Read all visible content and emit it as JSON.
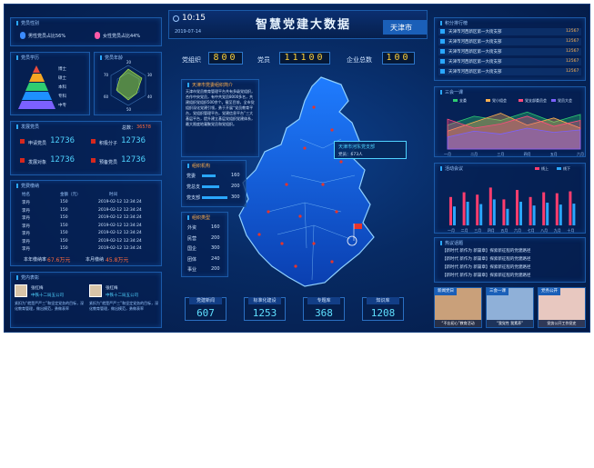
{
  "header": {
    "title": "智慧党建大数据",
    "time": "10:15",
    "date": "2019-07-14",
    "city": "天津市"
  },
  "counters": {
    "org_label": "党组织",
    "org_value": "800",
    "member_label": "党员",
    "member_value": "11100",
    "enterprise_label": "企业总数",
    "enterprise_value": "100"
  },
  "gender": {
    "title": "党员性别",
    "male_label": "男性党员占比56%",
    "female_label": "女性党员占比44%"
  },
  "education": {
    "title": "党员学历",
    "levels": [
      "博士",
      "硕士",
      "本科",
      "专科",
      "中专"
    ]
  },
  "age": {
    "title": "党员年龄",
    "axis": [
      "20",
      "30",
      "40",
      "50",
      "60",
      "70"
    ]
  },
  "development": {
    "title": "发展党员",
    "total_label": "总数：",
    "total_value": "36578",
    "items": [
      {
        "label": "申请党员",
        "value": "12736"
      },
      {
        "label": "积极分子",
        "value": "12736"
      },
      {
        "label": "发展对象",
        "value": "12736"
      },
      {
        "label": "预备党员",
        "value": "12736"
      }
    ]
  },
  "dues": {
    "title": "党费缴纳",
    "headers": [
      "姓名",
      "金额（元）",
      "时间"
    ],
    "rows": [
      {
        "name": "李丹",
        "amount": "150",
        "time": "2019-02-12  12:34:24"
      },
      {
        "name": "李丹",
        "amount": "150",
        "time": "2019-02-12  12:34:24"
      },
      {
        "name": "李丹",
        "amount": "150",
        "time": "2019-02-12  12:34:24"
      },
      {
        "name": "李丹",
        "amount": "150",
        "time": "2019-02-12  12:34:24"
      },
      {
        "name": "李丹",
        "amount": "150",
        "time": "2019-02-12  12:34:24"
      },
      {
        "name": "李丹",
        "amount": "150",
        "time": "2019-02-12  12:34:24"
      },
      {
        "name": "李丹",
        "amount": "150",
        "time": "2019-02-12  12:34:24"
      }
    ],
    "rate_label": "本年缴纳率",
    "rate_value": "67.6万元",
    "month_label": "本月缴纳",
    "month_value": "45.8万元"
  },
  "exemplary": {
    "title": "党内表彰",
    "people": [
      {
        "name": "张红梅",
        "org": "中铁十二局五公司",
        "desc": "紧扣为“就是严严三”和坚定党务的目标，深化教育管理，做出模范，勇做表率"
      },
      {
        "name": "张红梅",
        "org": "中铁十二局五公司",
        "desc": "紧扣为“就是严严三”和坚定党务的目标，深化教育管理，做出模范，勇做表率"
      }
    ]
  },
  "intro": {
    "title": "天津市党委组织简介",
    "text": "天津市党员教育管理平台共有多级党组织，合作中央党员，有中共党员8000多名，共建组织党组织500余个。截至目前，全市党组织深化党建引领，勇于开展“党员教育平台，党组织管理平台，党建信息平台”三大基层平台，提升建立基层党组织党建体系，最大限度地凝聚党员和党组织。"
  },
  "org_stats": {
    "title": "组织机构",
    "items": [
      {
        "label": "党委",
        "value": "160"
      },
      {
        "label": "党总支",
        "value": "200"
      },
      {
        "label": "党支部",
        "value": "300"
      }
    ]
  },
  "org_types": {
    "title": "组织类型",
    "items": [
      {
        "label": "外资",
        "value": "160"
      },
      {
        "label": "民营",
        "value": "200"
      },
      {
        "label": "国企",
        "value": "300"
      },
      {
        "label": "团体",
        "value": "240"
      },
      {
        "label": "事业",
        "value": "200"
      }
    ]
  },
  "map_tip": {
    "title": "天津市河东党支部",
    "line": "党员：673人"
  },
  "stats_bottom": [
    {
      "label": "党建新闻",
      "value": "607"
    },
    {
      "label": "标准化建设",
      "value": "1253"
    },
    {
      "label": "专题库",
      "value": "368"
    },
    {
      "label": "知识库",
      "value": "1208"
    }
  ],
  "ranking": {
    "title": "积分排行榜",
    "items": [
      {
        "name": "天津市河西新区第一大街支部",
        "score": "12567"
      },
      {
        "name": "天津市河西新区第一大街支部",
        "score": "12567"
      },
      {
        "name": "天津市河西新区第一大街支部",
        "score": "12567"
      },
      {
        "name": "天津市河西新区第一大街支部",
        "score": "12567"
      },
      {
        "name": "天津市河西新区第一大街支部",
        "score": "12567"
      }
    ]
  },
  "chart_data": [
    {
      "type": "area",
      "title": "三会一课",
      "categories": [
        "一月",
        "二月",
        "三月",
        "四月",
        "五月",
        "六月"
      ],
      "series": [
        {
          "name": "支委",
          "values": [
            40,
            55,
            48,
            62,
            45,
            58
          ]
        },
        {
          "name": "党小组会",
          "values": [
            30,
            45,
            60,
            40,
            52,
            35
          ]
        },
        {
          "name": "党支部委员会",
          "values": [
            50,
            35,
            42,
            55,
            38,
            48
          ]
        },
        {
          "name": "党员大会",
          "values": [
            20,
            30,
            25,
            35,
            28,
            32
          ]
        }
      ]
    },
    {
      "type": "bar",
      "title": "活动会议",
      "legend": [
        "线上",
        "线下"
      ],
      "categories": [
        "一月",
        "二月",
        "三月",
        "四月",
        "五月",
        "六月",
        "七月",
        "八月",
        "九月",
        "十月"
      ],
      "series": [
        {
          "name": "线上",
          "values": [
            60,
            70,
            65,
            80,
            55,
            75,
            60,
            70,
            68,
            72
          ]
        },
        {
          "name": "线下",
          "values": [
            40,
            50,
            45,
            55,
            35,
            50,
            42,
            48,
            44,
            46
          ]
        }
      ]
    }
  ],
  "news": {
    "title": "热议话题",
    "items": [
      "【新时代 新作为 新篇章】探索新征程的党建路径",
      "【新时代 新作为 新篇章】探索新征程的党建路径",
      "【新时代 新作为 新篇章】探索新征程的党建路径",
      "【新时代 新作为 新篇章】探索新征程的党建路径"
    ]
  },
  "media": [
    {
      "tag": "新闻党日",
      "caption": "“不忘初心”教育活动"
    },
    {
      "tag": "三会一课",
      "caption": "“我党性 我素养”"
    },
    {
      "tag": "党务公开",
      "caption": "党务公开工作党史"
    }
  ],
  "colors": {
    "accent": "#2aa7ff",
    "gold": "#ffd23a",
    "red": "#d6281e"
  }
}
